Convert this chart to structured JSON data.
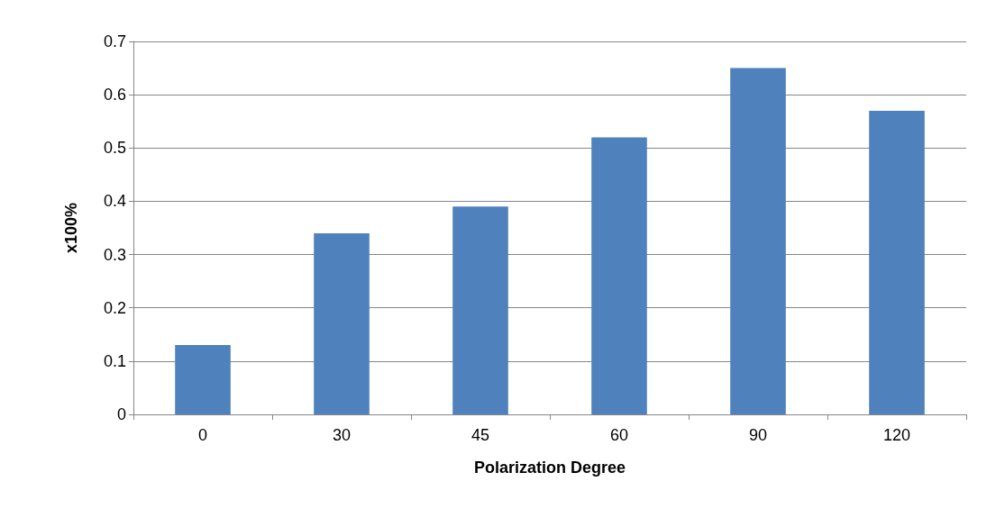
{
  "chart_data": {
    "type": "bar",
    "xlabel": "Polarization Degree",
    "ylabel": "x100%",
    "categories": [
      "0",
      "30",
      "45",
      "60",
      "90",
      "120"
    ],
    "values": [
      0.13,
      0.34,
      0.39,
      0.52,
      0.65,
      0.57
    ],
    "color": "#4f81bd",
    "ylim": [
      0,
      0.7
    ],
    "yticks": [
      0,
      0.1,
      0.2,
      0.3,
      0.4,
      0.5,
      0.6,
      0.7
    ],
    "grid": "y"
  }
}
